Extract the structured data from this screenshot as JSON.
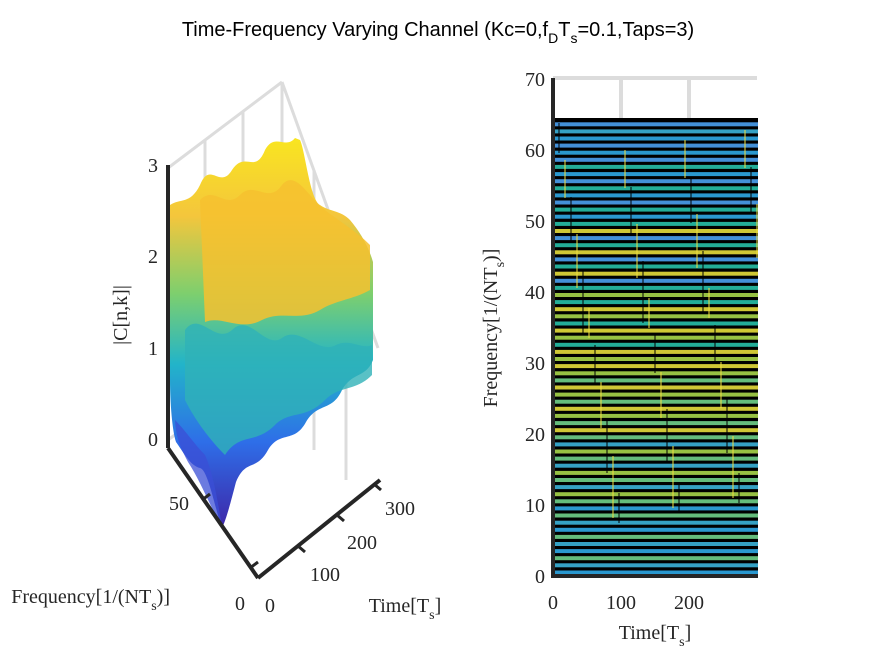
{
  "figure": {
    "title_main": "Time-Frequency Varying Channel (Kc=0,f",
    "title_sub_D": "D",
    "title_T": "T",
    "title_sub_s": "s",
    "title_tail": "=0.1,Taps=3)"
  },
  "colors": {
    "surf_low": "#3e26a8",
    "surf_mid": "#2cb7a0",
    "surf_high": "#f9d423",
    "surf_top": "#f8c03d",
    "background_dark": "#000000",
    "axis": "#262626",
    "grid": "#dcdcdc"
  },
  "chart_data": [
    {
      "type": "surface3d",
      "zlabel": "|C[n,k]|",
      "xlabel_main": "Time[T",
      "xlabel_sub": "s",
      "xlabel_close": "]",
      "ylabel_main": "Frequency[1/(NT",
      "ylabel_sub": "s",
      "ylabel_close": ")]",
      "z_ticks": [
        "0",
        "1",
        "2",
        "3"
      ],
      "time_ticks": [
        "0",
        "100",
        "200",
        "300"
      ],
      "freq_ticks": [
        "0",
        "50"
      ],
      "zlim": [
        0,
        3
      ],
      "time_range": [
        0,
        300
      ],
      "freq_range": [
        0,
        64
      ]
    },
    {
      "type": "heatmap",
      "xlabel_main": "Time[T",
      "xlabel_sub": "s",
      "xlabel_close": "]",
      "ylabel_main": "Frequency[1/(NT",
      "ylabel_sub": "s",
      "ylabel_close": ")]",
      "x_ticks": [
        "0",
        "100",
        "200"
      ],
      "y_ticks": [
        "0",
        "10",
        "20",
        "30",
        "40",
        "50",
        "60",
        "70"
      ],
      "xlim": [
        0,
        300
      ],
      "ylim": [
        0,
        70
      ],
      "data_freq_max": 64
    }
  ]
}
